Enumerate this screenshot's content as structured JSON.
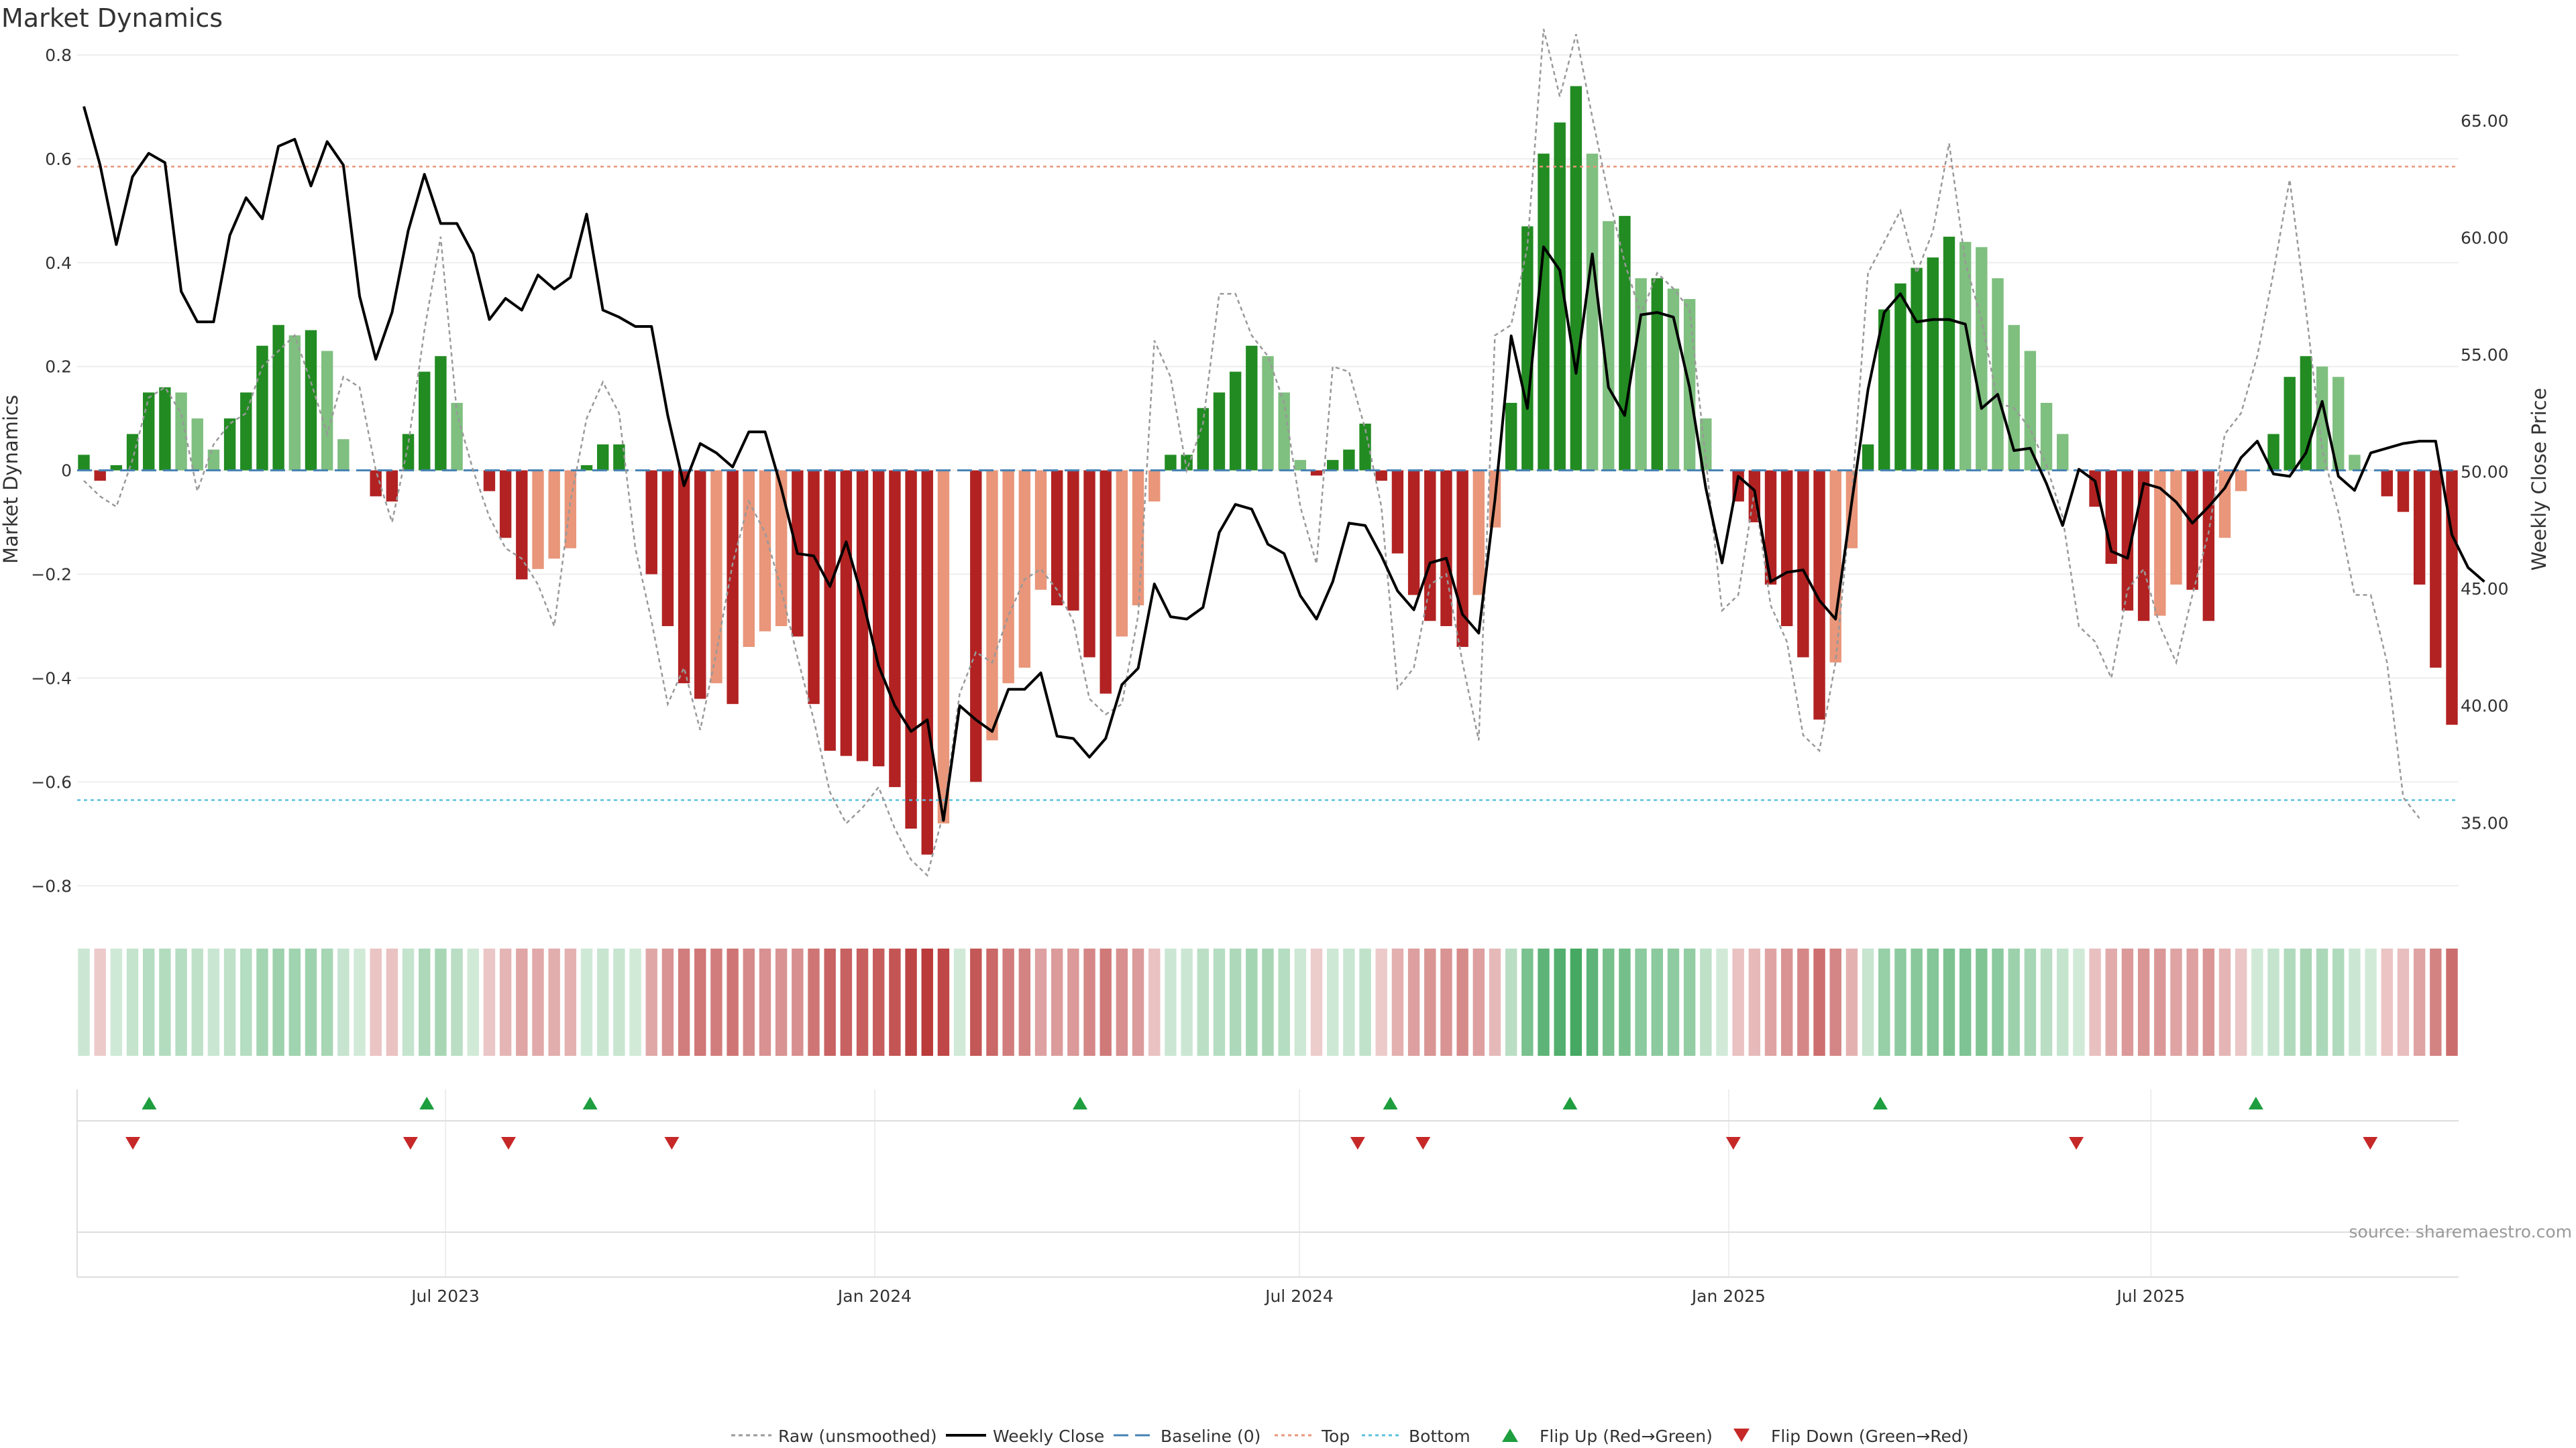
{
  "title": "Market Dynamics",
  "source": "source: sharemaestro.com",
  "chart_data": {
    "type": "bar",
    "title": "Market Dynamics",
    "ylabel": "Market Dynamics",
    "y2label": "Weekly Close Price",
    "ylim": [
      -0.85,
      0.8
    ],
    "y2lim": [
      31.2,
      67.8
    ],
    "yticks": [
      -0.8,
      -0.6,
      -0.4,
      -0.2,
      0,
      0.2,
      0.4,
      0.6,
      0.8
    ],
    "ytick_labels": [
      "−0.8",
      "−0.6",
      "−0.4",
      "−0.2",
      "0",
      "0.2",
      "0.4",
      "0.6",
      "0.8"
    ],
    "y2ticks": [
      35,
      40,
      45,
      50,
      55,
      60,
      65
    ],
    "y2tick_labels": [
      "35.00",
      "40.00",
      "45.00",
      "50.00",
      "55.00",
      "60.00",
      "65.00"
    ],
    "x_start": "2023-01-27",
    "x_end": "2025-11-07",
    "xticks": [
      "2023-07-01",
      "2024-01-01",
      "2024-07-01",
      "2025-01-01",
      "2025-07-01"
    ],
    "xtick_labels": [
      "Jul 2023",
      "Jan 2024",
      "Jul 2024",
      "Jan 2025",
      "Jul 2025"
    ],
    "grid": true,
    "legend_position": "bottom-center",
    "colors": {
      "green_strong": "#228b22",
      "green_weak": "#7fbf7f",
      "red_strong": "#b22222",
      "red_weak": "#e9967a",
      "raw": "#999999",
      "close": "#000000",
      "baseline": "#4682b4",
      "top": "#e9967a",
      "bottom": "#5bc0de",
      "flip_up": "#1e9e3e",
      "flip_down": "#c62828"
    },
    "top_level": 0.585,
    "bottom_level": -0.635,
    "baseline": 0,
    "series": [
      {
        "name": "Market Dynamics (smoothed)",
        "values": [
          0.03,
          -0.02,
          0.01,
          0.07,
          0.15,
          0.16,
          0.15,
          0.1,
          0.04,
          0.1,
          0.15,
          0.24,
          0.28,
          0.26,
          0.27,
          0.23,
          0.06,
          0.0,
          -0.05,
          -0.06,
          0.07,
          0.19,
          0.22,
          0.13,
          0.0,
          -0.04,
          -0.13,
          -0.21,
          -0.19,
          -0.17,
          -0.15,
          0.01,
          0.05,
          0.05,
          0.0,
          -0.2,
          -0.3,
          -0.41,
          -0.44,
          -0.41,
          -0.45,
          -0.34,
          -0.31,
          -0.3,
          -0.32,
          -0.45,
          -0.54,
          -0.55,
          -0.56,
          -0.57,
          -0.61,
          -0.69,
          -0.74,
          -0.68,
          0.0,
          -0.6,
          -0.52,
          -0.41,
          -0.38,
          -0.23,
          -0.26,
          -0.27,
          -0.36,
          -0.43,
          -0.32,
          -0.26,
          -0.06,
          0.03,
          0.03,
          0.12,
          0.15,
          0.19,
          0.24,
          0.22,
          0.15,
          0.02,
          -0.01,
          0.02,
          0.04,
          0.09,
          -0.02,
          -0.16,
          -0.24,
          -0.29,
          -0.3,
          -0.34,
          -0.24,
          -0.11,
          0.13,
          0.47,
          0.61,
          0.67,
          0.74,
          0.61,
          0.48,
          0.49,
          0.37,
          0.37,
          0.35,
          0.33,
          0.1,
          0.0,
          -0.06,
          -0.1,
          -0.22,
          -0.3,
          -0.36,
          -0.48,
          -0.37,
          -0.15,
          0.05,
          0.31,
          0.36,
          0.39,
          0.41,
          0.45,
          0.44,
          0.43,
          0.37,
          0.28,
          0.23,
          0.13,
          0.07,
          0.0,
          -0.07,
          -0.18,
          -0.27,
          -0.29,
          -0.28,
          -0.22,
          -0.23,
          -0.29,
          -0.13,
          -0.04,
          0.0,
          0.07,
          0.18,
          0.22,
          0.2,
          0.18,
          0.03,
          0.0,
          -0.05,
          -0.08,
          -0.22,
          -0.38,
          -0.49
        ]
      },
      {
        "name": "Raw (unsmoothed)",
        "values": [
          -0.02,
          -0.05,
          -0.07,
          0.02,
          0.14,
          0.16,
          0.11,
          -0.04,
          0.05,
          0.09,
          0.11,
          0.2,
          0.23,
          0.26,
          0.17,
          0.07,
          0.18,
          0.16,
          0.0,
          -0.1,
          0.05,
          0.27,
          0.45,
          0.11,
          0.0,
          -0.09,
          -0.15,
          -0.17,
          -0.22,
          -0.3,
          -0.06,
          0.1,
          0.17,
          0.11,
          -0.15,
          -0.29,
          -0.45,
          -0.38,
          -0.5,
          -0.35,
          -0.18,
          -0.06,
          -0.12,
          -0.23,
          -0.36,
          -0.48,
          -0.62,
          -0.68,
          -0.65,
          -0.61,
          -0.69,
          -0.75,
          -0.78,
          -0.66,
          -0.43,
          -0.35,
          -0.37,
          -0.28,
          -0.21,
          -0.19,
          -0.23,
          -0.29,
          -0.44,
          -0.47,
          -0.45,
          -0.28,
          0.25,
          0.18,
          0.0,
          0.09,
          0.34,
          0.34,
          0.26,
          0.22,
          0.13,
          -0.07,
          -0.18,
          0.2,
          0.19,
          0.08,
          -0.07,
          -0.42,
          -0.38,
          -0.22,
          -0.2,
          -0.37,
          -0.52,
          0.26,
          0.28,
          0.43,
          0.85,
          0.72,
          0.84,
          0.68,
          0.53,
          0.4,
          0.3,
          0.38,
          0.35,
          0.31,
          0.02,
          -0.27,
          -0.24,
          -0.04,
          -0.26,
          -0.33,
          -0.51,
          -0.54,
          -0.37,
          -0.05,
          0.38,
          0.44,
          0.5,
          0.38,
          0.46,
          0.63,
          0.4,
          0.29,
          0.13,
          0.12,
          0.08,
          0.01,
          -0.09,
          -0.3,
          -0.33,
          -0.4,
          -0.23,
          -0.19,
          -0.3,
          -0.37,
          -0.24,
          -0.12,
          0.07,
          0.11,
          0.22,
          0.38,
          0.56,
          0.31,
          0.04,
          -0.08,
          -0.24,
          -0.24,
          -0.37,
          -0.63,
          -0.67
        ]
      },
      {
        "name": "Weekly Close",
        "axis": "right",
        "values": [
          65.6,
          63.1,
          59.7,
          62.6,
          63.6,
          63.2,
          57.7,
          56.4,
          56.4,
          60.1,
          61.7,
          60.8,
          63.9,
          64.2,
          62.2,
          64.1,
          63.1,
          57.5,
          54.8,
          56.8,
          60.3,
          62.7,
          60.6,
          60.6,
          59.3,
          56.5,
          57.4,
          56.9,
          58.4,
          57.8,
          58.3,
          61.0,
          56.9,
          56.6,
          56.2,
          56.2,
          52.4,
          49.4,
          51.2,
          50.8,
          50.2,
          51.7,
          51.7,
          49.3,
          46.5,
          46.4,
          45.1,
          47.0,
          44.6,
          41.7,
          40.0,
          38.9,
          39.4,
          35.1,
          40.0,
          39.4,
          38.9,
          40.7,
          40.7,
          41.4,
          38.7,
          38.6,
          37.8,
          38.6,
          40.9,
          41.6,
          45.2,
          43.8,
          43.7,
          44.2,
          47.4,
          48.6,
          48.4,
          46.9,
          46.5,
          44.7,
          43.7,
          45.3,
          47.8,
          47.7,
          46.4,
          44.9,
          44.1,
          46.1,
          46.3,
          43.9,
          43.1,
          48.8,
          55.8,
          52.7,
          59.6,
          58.6,
          54.2,
          59.3,
          53.6,
          52.4,
          56.7,
          56.8,
          56.6,
          53.6,
          49.3,
          46.1,
          49.8,
          49.2,
          45.3,
          45.7,
          45.8,
          44.5,
          43.7,
          48.7,
          53.5,
          56.8,
          57.6,
          56.4,
          56.5,
          56.5,
          56.3,
          52.7,
          53.3,
          50.9,
          51.0,
          49.5,
          47.7,
          50.1,
          49.6,
          46.6,
          46.3,
          49.5,
          49.3,
          48.7,
          47.8,
          48.5,
          49.3,
          50.6,
          51.3,
          49.9,
          49.8,
          50.8,
          53.0,
          49.8,
          49.2,
          50.8,
          51.0,
          51.2,
          51.3,
          51.3,
          47.3,
          45.9,
          45.3
        ]
      }
    ],
    "flip_up": [
      "2023-02-24",
      "2023-06-23",
      "2023-09-01",
      "2024-03-29",
      "2024-08-09",
      "2024-10-25",
      "2025-03-07",
      "2025-08-15"
    ],
    "flip_down": [
      "2023-02-17",
      "2023-06-16",
      "2023-07-28",
      "2023-10-06",
      "2024-07-26",
      "2024-08-23",
      "2025-01-03",
      "2025-05-30",
      "2025-10-03"
    ],
    "legend": [
      "Raw (unsmoothed)",
      "Weekly Close",
      "Baseline (0)",
      "Top",
      "Bottom",
      "Flip Up (Red→Green)",
      "Flip Down (Green→Red)"
    ]
  }
}
